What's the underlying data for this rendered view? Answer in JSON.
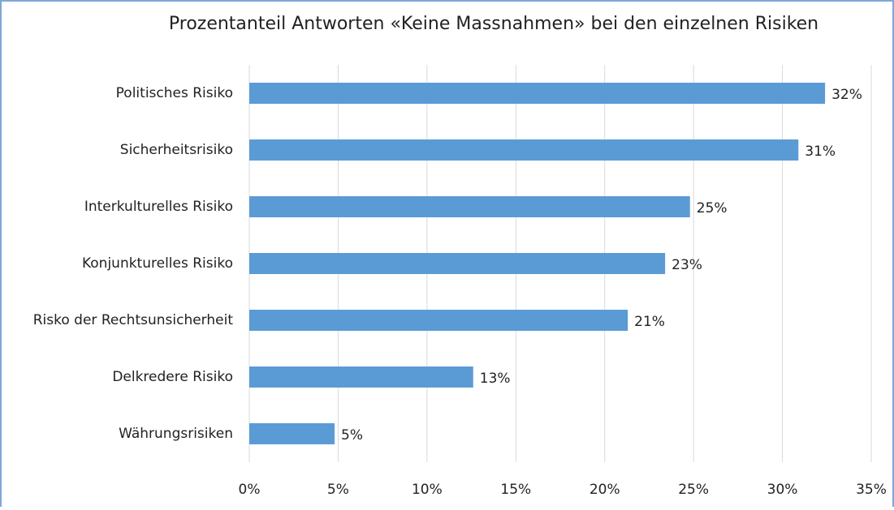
{
  "chart_data": {
    "type": "hbar",
    "title": "Prozentanteil Antworten «Keine Massnahmen» bei den einzelnen Risiken",
    "categories": [
      "Politisches Risiko",
      "Sicherheitsrisiko",
      "Interkulturelles Risiko",
      "Konjunkturelles Risiko",
      "Risko der Rechtsunsicherheit",
      "Delkredere Risiko",
      "Währungsrisiken"
    ],
    "values": [
      32.4,
      30.9,
      24.8,
      23.4,
      21.3,
      12.6,
      4.8
    ],
    "value_labels": [
      "32%",
      "31%",
      "25%",
      "23%",
      "21%",
      "13%",
      "5%"
    ],
    "color": "#5b9bd5",
    "xlim": [
      0,
      35
    ],
    "xticks": [
      {
        "value": 0,
        "label": "0%"
      },
      {
        "value": 5,
        "label": "5%"
      },
      {
        "value": 10,
        "label": "10%"
      },
      {
        "value": 15,
        "label": "15%"
      },
      {
        "value": 20,
        "label": "20%"
      },
      {
        "value": 25,
        "label": "25%"
      },
      {
        "value": 30,
        "label": "30%"
      },
      {
        "value": 35,
        "label": "35%"
      }
    ],
    "grid": true
  }
}
